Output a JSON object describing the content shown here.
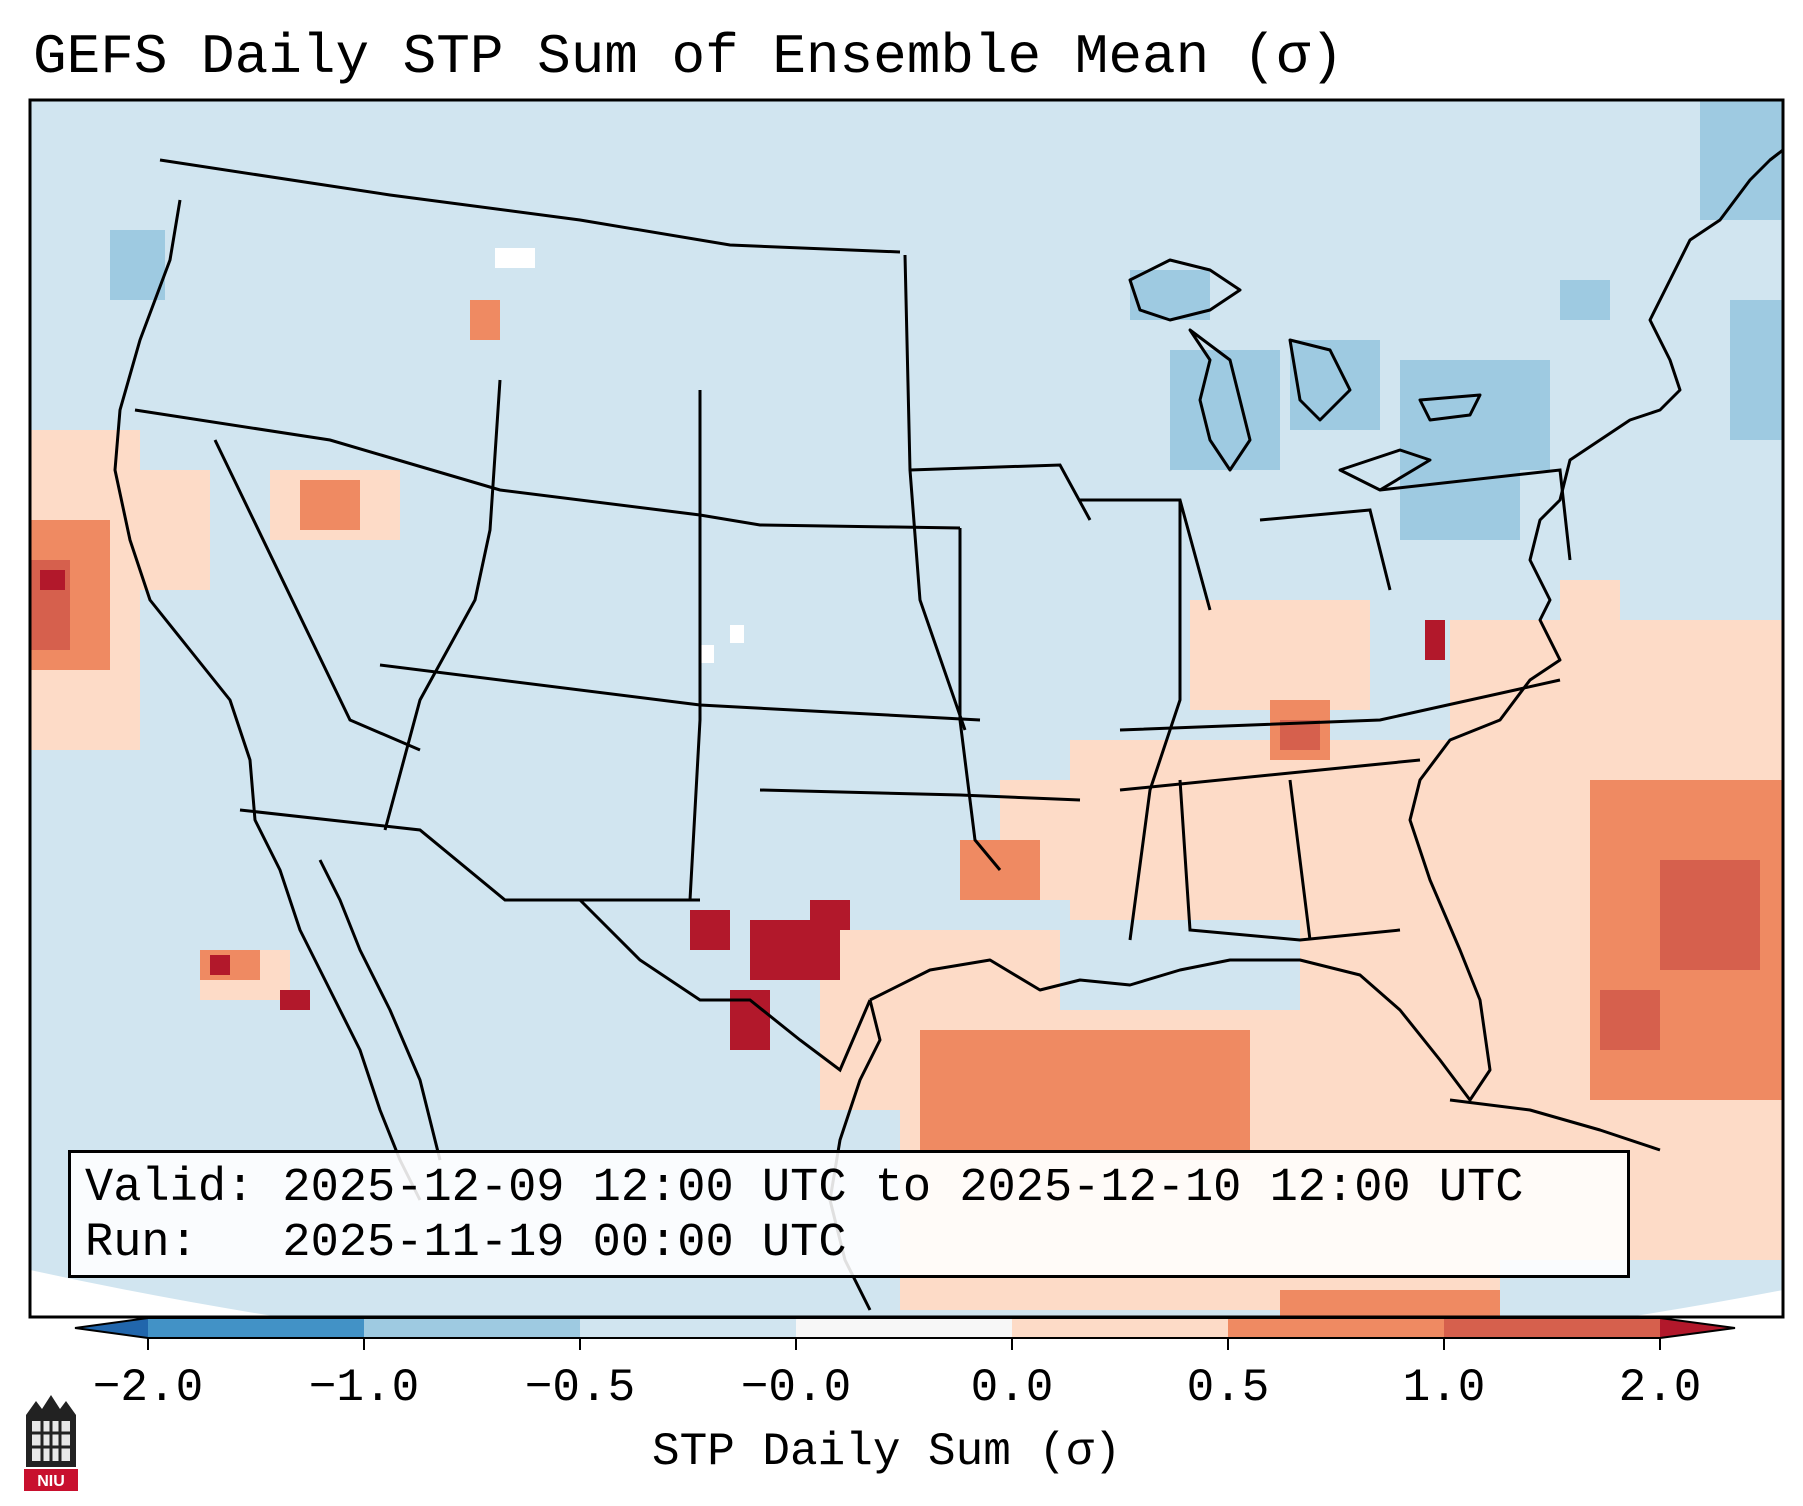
{
  "title": "GEFS Daily STP Sum of Ensemble Mean (σ)",
  "info": {
    "valid": "Valid: 2025-12-09 12:00 UTC to 2025-12-10 12:00 UTC",
    "run": "Run:   2025-11-19 00:00 UTC"
  },
  "colorbar": {
    "label": "STP Daily Sum (σ)",
    "ticks": [
      "−2.0",
      "−1.0",
      "−0.5",
      "−0.0",
      "0.0",
      "0.5",
      "1.0",
      "2.0"
    ],
    "bins": [
      {
        "range": "-2.0 to -1.0",
        "color": "#4292c6"
      },
      {
        "range": "-1.0 to -0.5",
        "color": "#9ecae1"
      },
      {
        "range": "-0.5 to -0.0",
        "color": "#d1e5f0"
      },
      {
        "range": "-0.0 to 0.0",
        "color": "#f7f7f7"
      },
      {
        "range": "0.0 to 0.5",
        "color": "#fddbc7"
      },
      {
        "range": "0.5 to 1.0",
        "color": "#ef8a62"
      },
      {
        "range": "1.0 to 2.0",
        "color": "#d6604d"
      },
      {
        "extend_low": "#2166ac",
        "extend_high": "#b2182b"
      }
    ]
  },
  "map": {
    "background_color": "#d1e5f0",
    "projection": "Lambert Conformal (CONUS)",
    "notable_features": [
      "Texas dark-red cluster",
      "Gulf of Mexico positive anomaly",
      "Great Lakes negative anomaly",
      "Western Atlantic positive anomaly"
    ]
  },
  "logo": {
    "text": "NIU",
    "color": "#c8102e"
  }
}
